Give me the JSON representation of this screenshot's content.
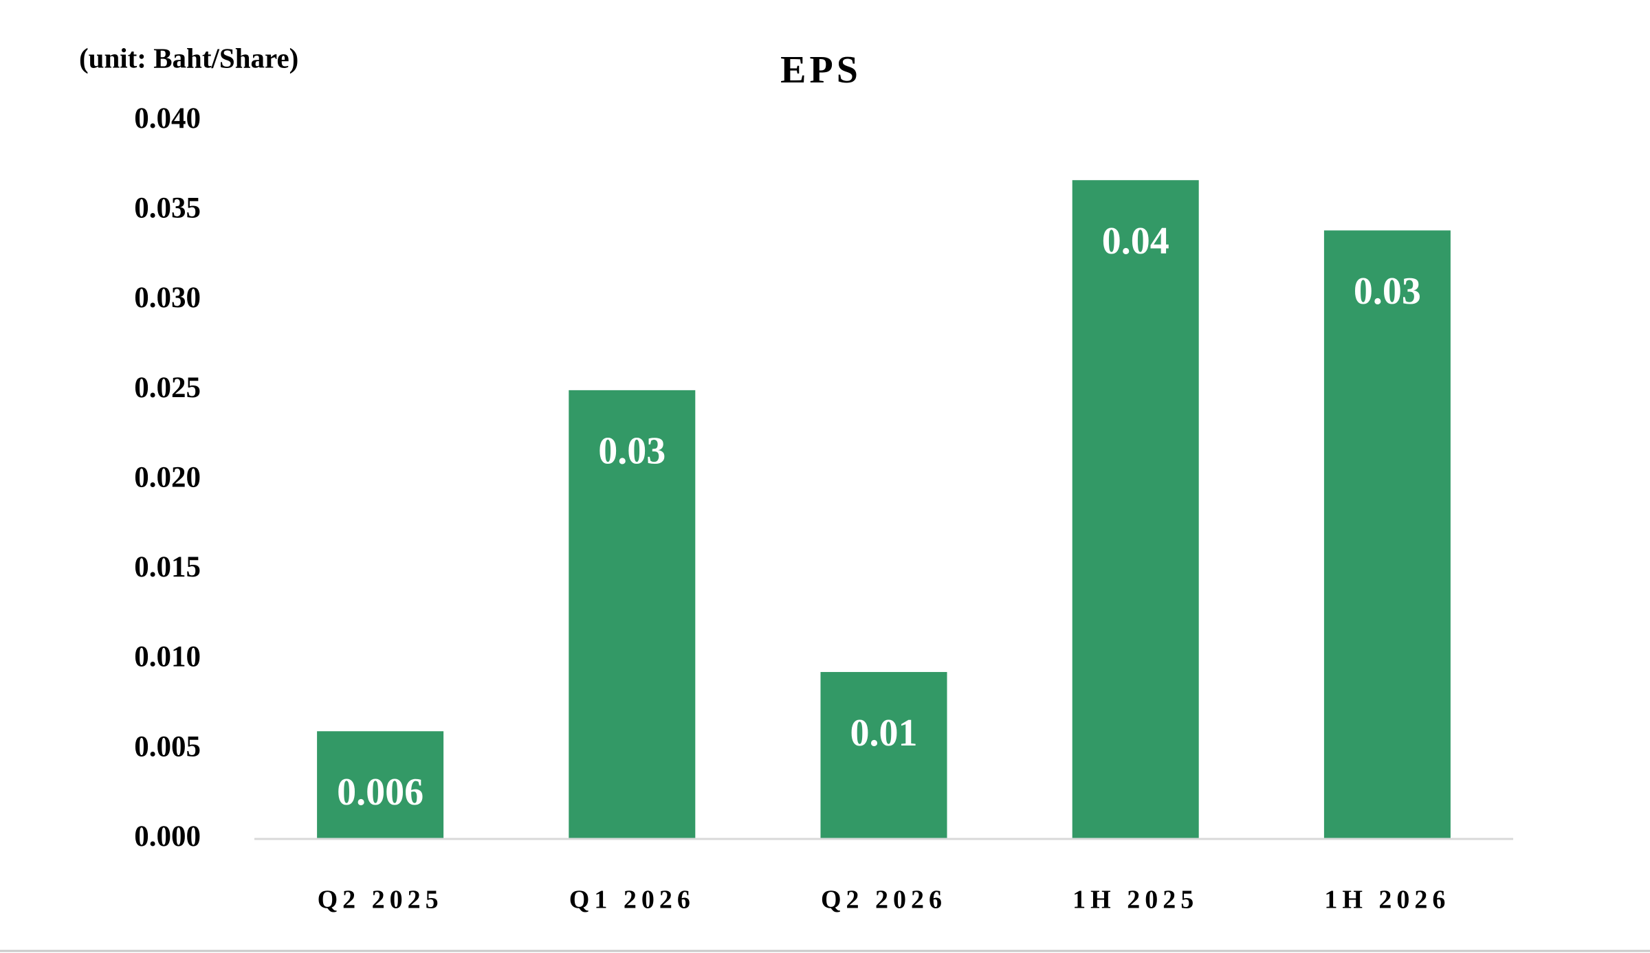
{
  "chart_data": {
    "type": "bar",
    "title": "EPS",
    "unit_label": "(unit: Baht/Share)",
    "categories": [
      "Q2 2025",
      "Q1 2026",
      "Q2 2026",
      "1H 2025",
      "1H 2026"
    ],
    "values": [
      0.006,
      0.025,
      0.0093,
      0.0367,
      0.0339
    ],
    "value_labels": [
      "0.006",
      "0.03",
      "0.01",
      "0.04",
      "0.03"
    ],
    "color": "#339966",
    "ylim": [
      0,
      0.04
    ],
    "yticks": [
      {
        "value": 0,
        "label": "0.000"
      },
      {
        "value": 0.005,
        "label": "0.005"
      },
      {
        "value": 0.01,
        "label": "0.010"
      },
      {
        "value": 0.015,
        "label": "0.015"
      },
      {
        "value": 0.02,
        "label": "0.020"
      },
      {
        "value": 0.025,
        "label": "0.025"
      },
      {
        "value": 0.03,
        "label": "0.030"
      },
      {
        "value": 0.035,
        "label": "0.035"
      },
      {
        "value": 0.04,
        "label": "0.040"
      }
    ],
    "grid": false
  }
}
